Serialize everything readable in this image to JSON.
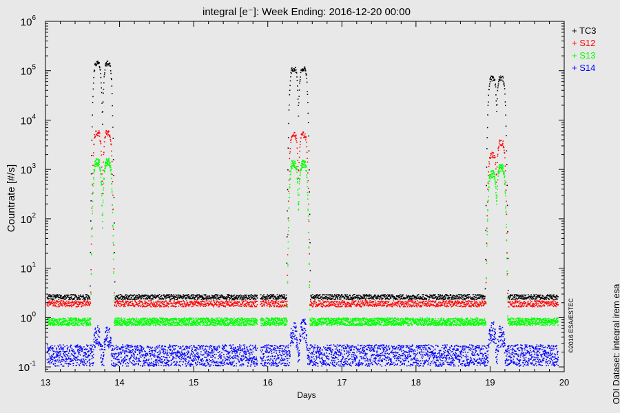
{
  "chart_data": {
    "type": "scatter",
    "title": "integral [e⁻]: Week Ending: 2016-12-20 00:00",
    "xlabel": "Days",
    "ylabel": "Countrate [#/s]",
    "xlim": [
      13,
      20
    ],
    "ylim": [
      0.08,
      1000000
    ],
    "yscale": "log",
    "x_ticks": [
      "13",
      "14",
      "15",
      "16",
      "17",
      "18",
      "19",
      "20"
    ],
    "y_ticks": [
      {
        "base": "10",
        "exp": "-1"
      },
      {
        "base": "10",
        "exp": "0"
      },
      {
        "base": "10",
        "exp": "1"
      },
      {
        "base": "10",
        "exp": "2"
      },
      {
        "base": "10",
        "exp": "3"
      },
      {
        "base": "10",
        "exp": "4"
      },
      {
        "base": "10",
        "exp": "5"
      },
      {
        "base": "10",
        "exp": "6"
      }
    ],
    "legend_position": "top-right",
    "gaps": [
      [
        13.0,
        13.02
      ],
      [
        15.86,
        15.9
      ],
      [
        19.92,
        20.0
      ]
    ],
    "perigee_passes": [
      {
        "center": 13.75,
        "start": 13.62,
        "end": 13.9
      },
      {
        "center": 16.4,
        "start": 16.3,
        "end": 16.55
      },
      {
        "center": 19.08,
        "start": 19.0,
        "end": 19.2
      }
    ],
    "series": [
      {
        "name": "TC3",
        "color": "#000000",
        "baseline": 2.6,
        "scatter": 0.1,
        "peaks": [
          {
            "x": 13.7,
            "y": 140000
          },
          {
            "x": 13.84,
            "y": 140000
          },
          {
            "x": 16.35,
            "y": 110000
          },
          {
            "x": 16.48,
            "y": 110000
          },
          {
            "x": 19.03,
            "y": 70000
          },
          {
            "x": 19.15,
            "y": 72000
          }
        ]
      },
      {
        "name": "S12",
        "color": "#ff0000",
        "baseline": 1.9,
        "scatter": 0.12,
        "peaks": [
          {
            "x": 13.7,
            "y": 5500
          },
          {
            "x": 13.84,
            "y": 5500
          },
          {
            "x": 16.35,
            "y": 5000
          },
          {
            "x": 16.48,
            "y": 5000
          },
          {
            "x": 19.03,
            "y": 2000
          },
          {
            "x": 19.15,
            "y": 3500
          }
        ]
      },
      {
        "name": "S13",
        "color": "#00ff00",
        "baseline": 0.82,
        "scatter": 0.15,
        "peaks": [
          {
            "x": 13.7,
            "y": 1400
          },
          {
            "x": 13.84,
            "y": 1400
          },
          {
            "x": 16.35,
            "y": 1300
          },
          {
            "x": 16.48,
            "y": 1300
          },
          {
            "x": 19.03,
            "y": 800
          },
          {
            "x": 19.15,
            "y": 1100
          }
        ]
      },
      {
        "name": "S14",
        "color": "#0000ff",
        "baseline": 0.17,
        "scatter": 0.25,
        "peaks": [
          {
            "x": 13.7,
            "y": 0.45
          },
          {
            "x": 13.84,
            "y": 0.4
          },
          {
            "x": 16.35,
            "y": 0.5
          },
          {
            "x": 16.48,
            "y": 0.6
          },
          {
            "x": 19.03,
            "y": 0.5
          },
          {
            "x": 19.15,
            "y": 0.42
          }
        ]
      }
    ],
    "copyright": "©2016 ESA/ESTEC",
    "dataset_note": "ODI Dataset: integral irem esa"
  }
}
